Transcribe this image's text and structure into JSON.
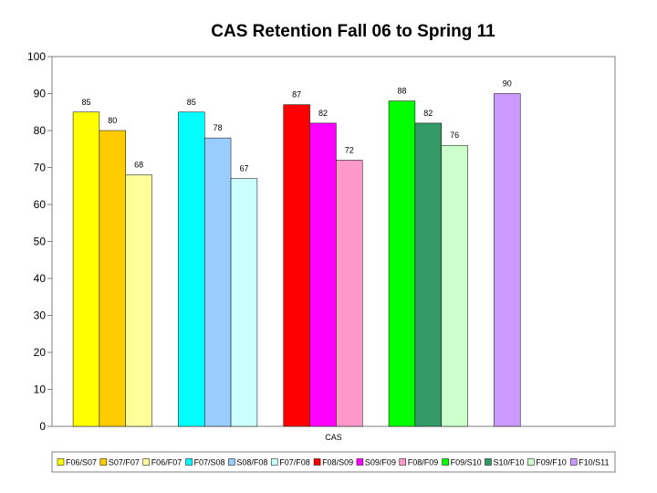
{
  "chart_data": {
    "type": "bar",
    "title": "CAS Retention Fall 06 to Spring 11",
    "xlabel": "",
    "ylabel": "",
    "categories": [
      "CAS"
    ],
    "ylim": [
      0,
      100
    ],
    "yticks": [
      0,
      10,
      20,
      30,
      40,
      50,
      60,
      70,
      80,
      90,
      100
    ],
    "grid": false,
    "legend_position": "bottom",
    "series": [
      {
        "name": "F06/S07",
        "values": [
          85
        ],
        "color": "#ffff00"
      },
      {
        "name": "S07/F07",
        "values": [
          80
        ],
        "color": "#ffcc00"
      },
      {
        "name": "F06/F07",
        "values": [
          68
        ],
        "color": "#ffff99"
      },
      {
        "name": "F07/S08",
        "values": [
          85
        ],
        "color": "#00ffff"
      },
      {
        "name": "S08/F08",
        "values": [
          78
        ],
        "color": "#99ccff"
      },
      {
        "name": "F07/F08",
        "values": [
          67
        ],
        "color": "#ccffff"
      },
      {
        "name": "F08/S09",
        "values": [
          87
        ],
        "color": "#ff0000"
      },
      {
        "name": "S09/F09",
        "values": [
          82
        ],
        "color": "#ff00ff"
      },
      {
        "name": "F08/F09",
        "values": [
          72
        ],
        "color": "#ff99cc"
      },
      {
        "name": "F09/S10",
        "values": [
          88
        ],
        "color": "#00ff00"
      },
      {
        "name": "S10/F10",
        "values": [
          82
        ],
        "color": "#339966"
      },
      {
        "name": "F09/F10",
        "values": [
          76
        ],
        "color": "#ccffcc"
      },
      {
        "name": "F10/S11",
        "values": [
          90
        ],
        "color": "#cc99ff"
      }
    ]
  }
}
